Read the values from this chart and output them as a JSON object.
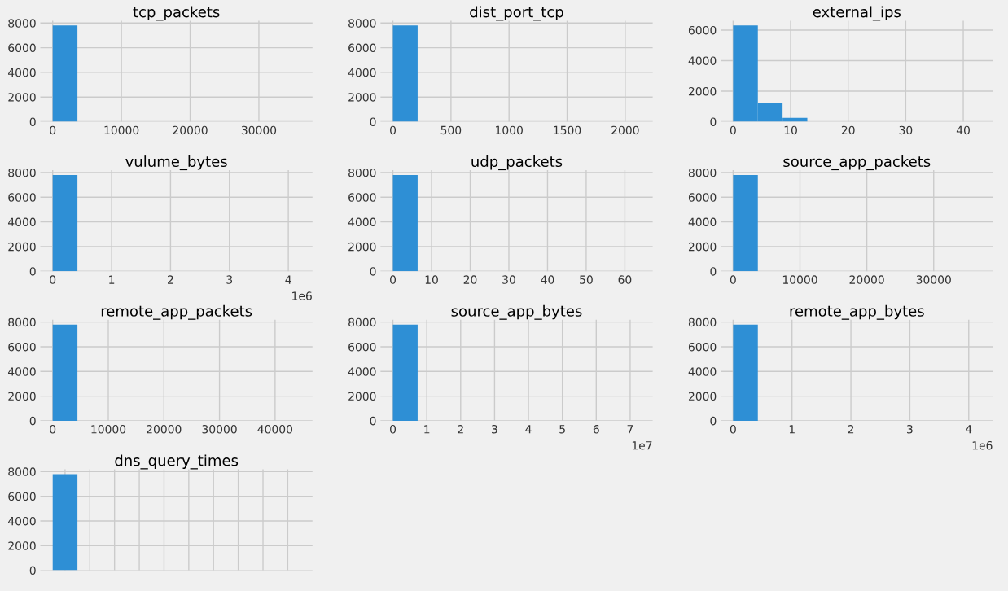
{
  "chart_data": [
    {
      "type": "histogram",
      "title": "tcp_packets",
      "bins": [
        0,
        3600,
        7200,
        10800,
        14400,
        18000,
        21600,
        25200,
        28800,
        32400,
        36000
      ],
      "values": [
        7800,
        0,
        0,
        0,
        0,
        0,
        0,
        0,
        0,
        0
      ],
      "color": "#2e8fd5",
      "xlim": [
        -1800,
        37800
      ],
      "xticks": [
        0,
        10000,
        20000,
        30000
      ],
      "ylim": [
        0,
        8190
      ],
      "yticks": [
        0,
        2000,
        4000,
        6000,
        8000
      ],
      "grid": true
    },
    {
      "type": "histogram",
      "title": "dist_port_tcp",
      "bins": [
        0,
        213,
        426,
        639,
        852,
        1065,
        1278,
        1491,
        1704,
        1917,
        2130
      ],
      "values": [
        7800,
        0,
        0,
        0,
        0,
        0,
        0,
        0,
        0,
        0
      ],
      "color": "#2e8fd5",
      "xlim": [
        -106.5,
        2236.5
      ],
      "xticks": [
        0,
        500,
        1000,
        1500,
        2000
      ],
      "ylim": [
        0,
        8190
      ],
      "yticks": [
        0,
        2000,
        4000,
        6000,
        8000
      ],
      "grid": true
    },
    {
      "type": "histogram",
      "title": "external_ips",
      "bins": [
        0,
        4.3,
        8.6,
        12.9,
        17.2,
        21.5,
        25.8,
        30.1,
        34.4,
        38.7,
        43
      ],
      "values": [
        6300,
        1200,
        250,
        0,
        0,
        0,
        0,
        0,
        0,
        0
      ],
      "color": "#2e8fd5",
      "xlim": [
        -2.15,
        45.15
      ],
      "xticks": [
        0,
        10,
        20,
        30,
        40
      ],
      "ylim": [
        0,
        6615
      ],
      "yticks": [
        0,
        2000,
        4000,
        6000
      ],
      "grid": true
    },
    {
      "type": "histogram",
      "title": "vulume_bytes",
      "bins": [
        0,
        0.42,
        0.84,
        1.26,
        1.68,
        2.1,
        2.52,
        2.94,
        3.36,
        3.78,
        4.2
      ],
      "values": [
        7800,
        0,
        0,
        0,
        0,
        0,
        0,
        0,
        0,
        0
      ],
      "color": "#2e8fd5",
      "xlim": [
        -0.21,
        4.41
      ],
      "xticks": [
        0,
        1,
        2,
        3,
        4
      ],
      "ylim": [
        0,
        8190
      ],
      "yticks": [
        0,
        2000,
        4000,
        6000,
        8000
      ],
      "grid": true,
      "annotations": [
        "1e6"
      ]
    },
    {
      "type": "histogram",
      "title": "udp_packets",
      "bins": [
        0,
        6.4,
        12.8,
        19.2,
        25.6,
        32,
        38.4,
        44.8,
        51.2,
        57.6,
        64
      ],
      "values": [
        7800,
        0,
        0,
        0,
        0,
        0,
        0,
        0,
        0,
        0
      ],
      "color": "#2e8fd5",
      "xlim": [
        -3.2,
        67.2
      ],
      "xticks": [
        0,
        10,
        20,
        30,
        40,
        50,
        60
      ],
      "ylim": [
        0,
        8190
      ],
      "yticks": [
        0,
        2000,
        4000,
        6000,
        8000
      ],
      "grid": true
    },
    {
      "type": "histogram",
      "title": "source_app_packets",
      "bins": [
        0,
        3700,
        7400,
        11100,
        14800,
        18500,
        22200,
        25900,
        29600,
        33300,
        37000
      ],
      "values": [
        7800,
        0,
        0,
        0,
        0,
        0,
        0,
        0,
        0,
        0
      ],
      "color": "#2e8fd5",
      "xlim": [
        -1850,
        38850
      ],
      "xticks": [
        0,
        10000,
        20000,
        30000
      ],
      "ylim": [
        0,
        8190
      ],
      "yticks": [
        0,
        2000,
        4000,
        6000,
        8000
      ],
      "grid": true
    },
    {
      "type": "histogram",
      "title": "remote_app_packets",
      "bins": [
        0,
        4450,
        8900,
        13350,
        17800,
        22250,
        26700,
        31150,
        35600,
        40050,
        44500
      ],
      "values": [
        7800,
        0,
        0,
        0,
        0,
        0,
        0,
        0,
        0,
        0
      ],
      "color": "#2e8fd5",
      "xlim": [
        -2225,
        46725
      ],
      "xticks": [
        0,
        10000,
        20000,
        30000,
        40000
      ],
      "ylim": [
        0,
        8190
      ],
      "yticks": [
        0,
        2000,
        4000,
        6000,
        8000
      ],
      "grid": true
    },
    {
      "type": "histogram",
      "title": "source_app_bytes",
      "bins": [
        0,
        0.73,
        1.46,
        2.19,
        2.92,
        3.65,
        4.38,
        5.11,
        5.84,
        6.57,
        7.3
      ],
      "values": [
        7800,
        0,
        0,
        0,
        0,
        0,
        0,
        0,
        0,
        0
      ],
      "color": "#2e8fd5",
      "xlim": [
        -0.365,
        7.665
      ],
      "xticks": [
        0,
        1,
        2,
        3,
        4,
        5,
        6,
        7
      ],
      "ylim": [
        0,
        8190
      ],
      "yticks": [
        0,
        2000,
        4000,
        6000,
        8000
      ],
      "grid": true,
      "annotations": [
        "1e7"
      ]
    },
    {
      "type": "histogram",
      "title": "remote_app_bytes",
      "bins": [
        0,
        0.42,
        0.84,
        1.26,
        1.68,
        2.1,
        2.52,
        2.94,
        3.36,
        3.78,
        4.2
      ],
      "values": [
        7800,
        0,
        0,
        0,
        0,
        0,
        0,
        0,
        0,
        0
      ],
      "color": "#2e8fd5",
      "xlim": [
        -0.21,
        4.41
      ],
      "xticks": [
        0,
        1,
        2,
        3,
        4
      ],
      "ylim": [
        0,
        8190
      ],
      "yticks": [
        0,
        2000,
        4000,
        6000,
        8000
      ],
      "grid": true,
      "annotations": [
        "1e6"
      ]
    },
    {
      "type": "bar",
      "title": "dns_query_times",
      "categories": [
        null,
        null,
        null,
        null,
        null,
        null,
        null,
        null,
        null,
        null
      ],
      "values": [
        7800,
        0,
        0,
        0,
        0,
        0,
        0,
        0,
        0,
        0
      ],
      "color": "#2e8fd5",
      "ylim": [
        0,
        8190
      ],
      "yticks": [
        0,
        2000,
        4000,
        6000,
        8000
      ],
      "grid": true
    }
  ]
}
